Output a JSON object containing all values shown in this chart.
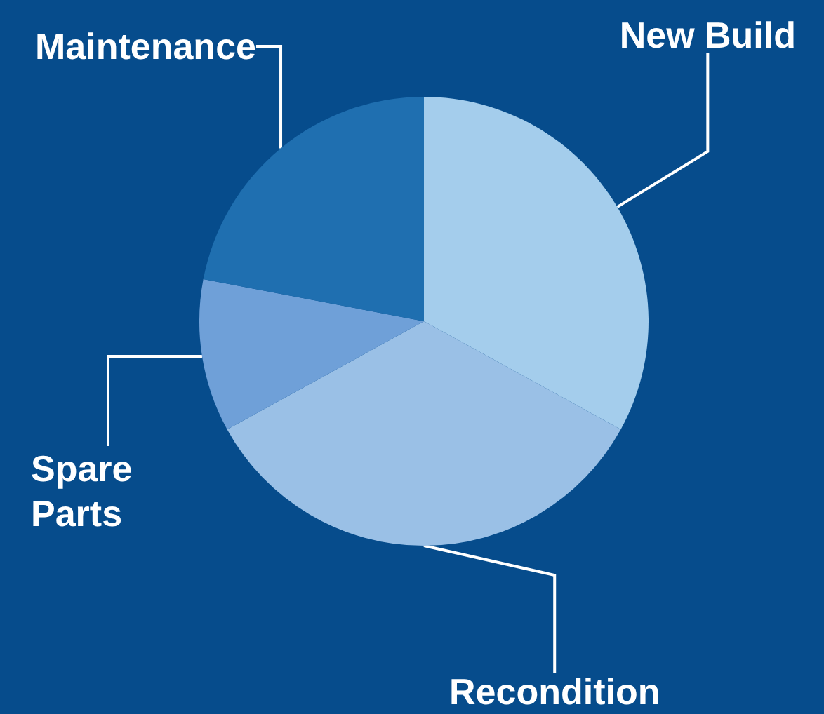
{
  "chart_data": {
    "type": "pie",
    "categories": [
      "New Build",
      "Recondition",
      "Spare Parts",
      "Maintenance"
    ],
    "values": [
      33,
      34,
      11,
      22
    ],
    "colors": [
      "#a4cdec",
      "#9ac0e6",
      "#6fa0d8",
      "#1f6fb0"
    ]
  }
}
